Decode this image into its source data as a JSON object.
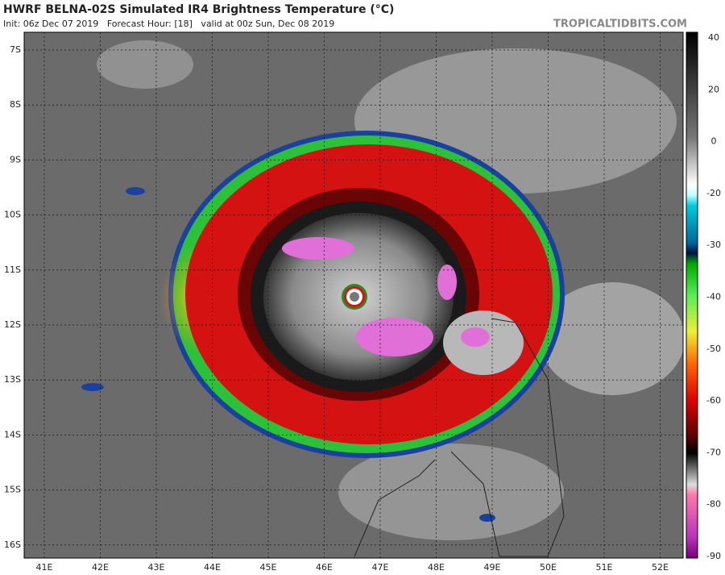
{
  "header": {
    "title": "HWRF BELNA-02S Simulated IR4 Brightness Temperature (°C)",
    "subtitle": "Init: 06z Dec 07 2019   Forecast Hour: [18]   valid at 00z Sun, Dec 08 2019",
    "credit": "TROPICALTIDBITS.COM"
  },
  "map": {
    "lat_labels": [
      "7S",
      "8S",
      "9S",
      "10S",
      "11S",
      "12S",
      "13S",
      "14S",
      "15S",
      "16S"
    ],
    "lon_labels": [
      "41E",
      "42E",
      "43E",
      "44E",
      "45E",
      "46E",
      "47E",
      "48E",
      "49E",
      "50E",
      "51E",
      "52E"
    ]
  },
  "colorbar": {
    "labels": [
      "40",
      "20",
      "0",
      "-20",
      "-30",
      "-40",
      "-50",
      "-60",
      "-70",
      "-80",
      "-90"
    ]
  }
}
